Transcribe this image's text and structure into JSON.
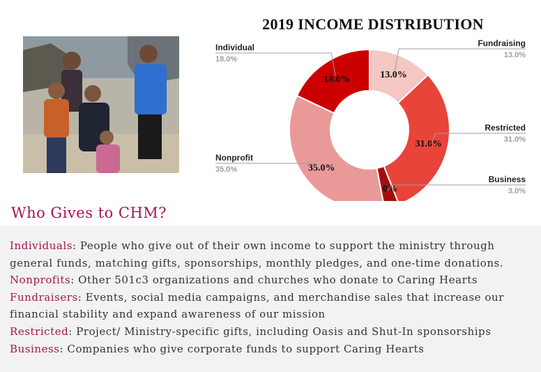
{
  "photo": {
    "alt": "Family photo"
  },
  "chart_data": {
    "type": "pie",
    "donut": true,
    "title": "2019 INCOME DISTRIBUTION",
    "slices": [
      {
        "label": "Fundraising",
        "value": 13.0,
        "display": "13.0%",
        "color": "#f4c7c3"
      },
      {
        "label": "Restricted",
        "value": 31.0,
        "display": "31.0%",
        "color": "#e8443a"
      },
      {
        "label": "Business",
        "value": 3.0,
        "display": "3.0%",
        "color": "#a50e0e"
      },
      {
        "label": "Nonprofit",
        "value": 35.0,
        "display": "35.0%",
        "color": "#ea9999"
      },
      {
        "label": "Individual",
        "value": 18.0,
        "display": "18.0%",
        "color": "#cc0000"
      }
    ]
  },
  "section": {
    "title": "Who Gives to CHM?"
  },
  "descriptions": [
    {
      "term": "Individuals",
      "text": ": People who give out of their own income to support the ministry through general funds, matching gifts, sponsorships, monthly pledges, and one-time donations."
    },
    {
      "term": "Nonprofits",
      "text": ": Other 501c3 organizations and churches who donate to Caring Hearts"
    },
    {
      "term": "Fundraisers",
      "text": ": Events, social media campaigns, and merchandise sales that increase our financial stability and expand awareness of our mission"
    },
    {
      "term": "Restricted",
      "text": ": Project/ Ministry-specific gifts, including Oasis and Shut-In sponsorships"
    },
    {
      "term": "Business",
      "text": ": Companies who give corporate funds to support Caring Hearts"
    }
  ]
}
